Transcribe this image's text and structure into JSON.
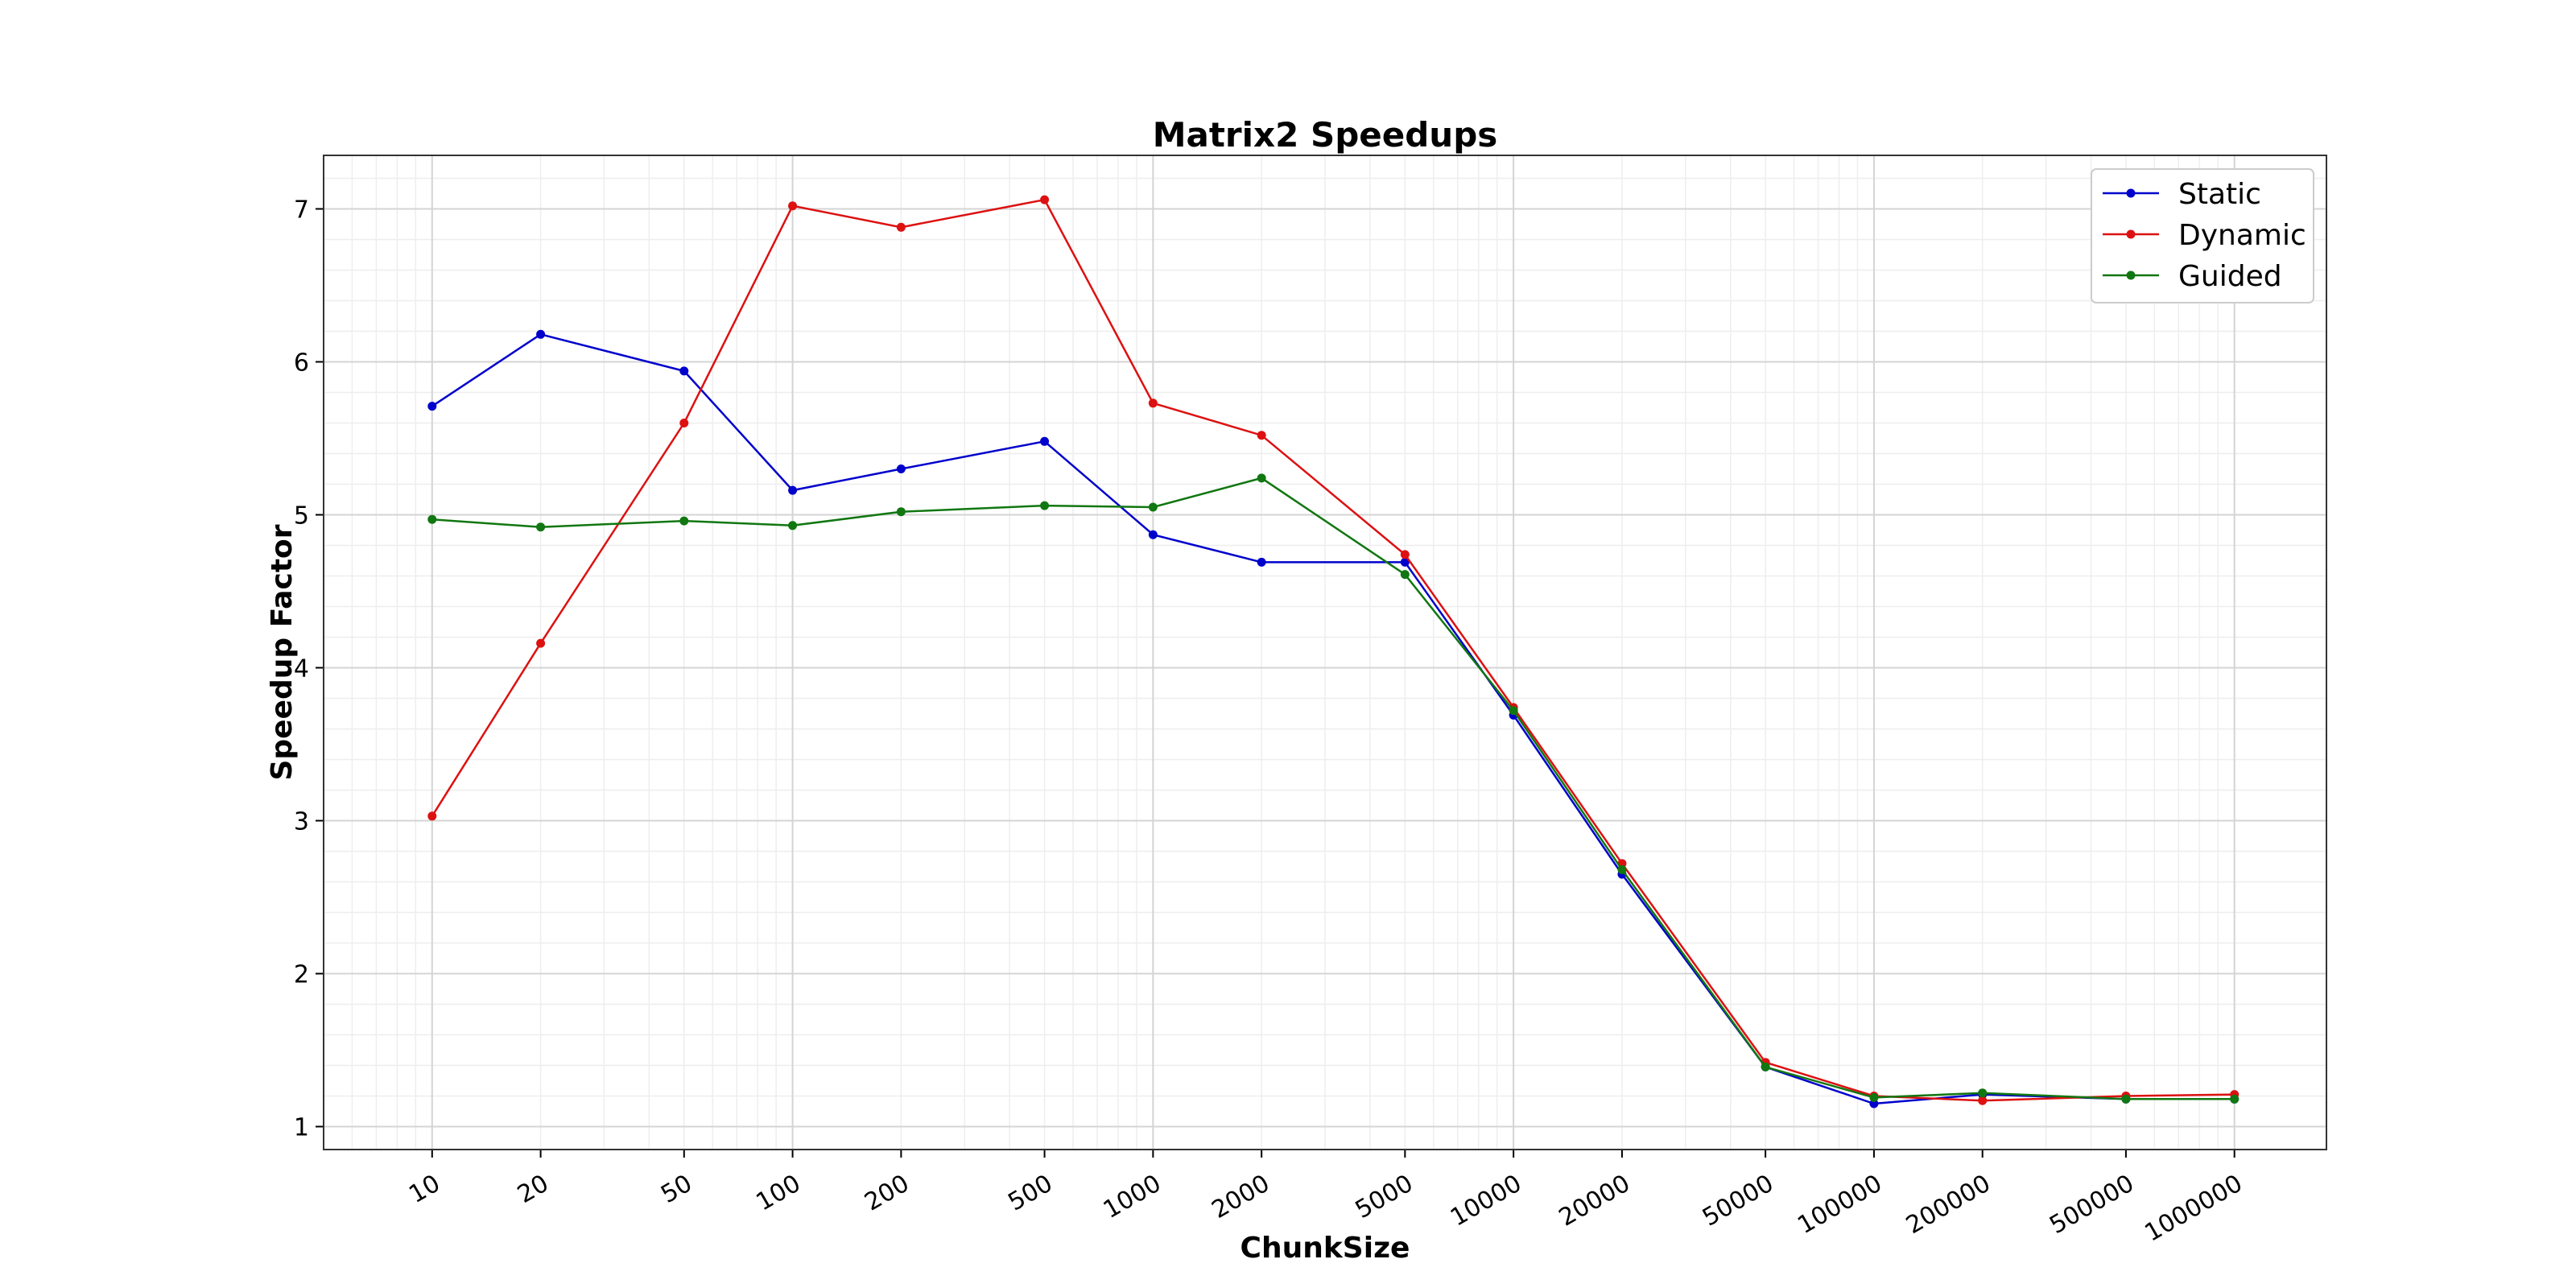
{
  "chart_data": {
    "type": "line",
    "title": "Matrix2 Speedups",
    "xlabel": "ChunkSize",
    "ylabel": "Speedup Factor",
    "x_scale": "log",
    "xlim": [
      5,
      1800000
    ],
    "ylim": [
      0.85,
      7.35
    ],
    "grid": true,
    "legend_position": "top-right",
    "x": [
      10,
      20,
      50,
      100,
      200,
      500,
      1000,
      2000,
      5000,
      10000,
      20000,
      50000,
      100000,
      200000,
      500000,
      1000000
    ],
    "x_tick_labels": [
      "10",
      "20",
      "50",
      "100",
      "200",
      "500",
      "1000",
      "2000",
      "5000",
      "10000",
      "20000",
      "50000",
      "100000",
      "200000",
      "500000",
      "1000000"
    ],
    "y_ticks": [
      1,
      2,
      3,
      4,
      5,
      6,
      7
    ],
    "y_tick_labels": [
      "1",
      "2",
      "3",
      "4",
      "5",
      "6",
      "7"
    ],
    "series": [
      {
        "name": "Static",
        "color": "#0000cc",
        "values": [
          5.71,
          6.18,
          5.94,
          5.16,
          5.3,
          5.48,
          4.87,
          4.69,
          4.69,
          3.69,
          2.65,
          1.39,
          1.15,
          1.21,
          1.18,
          1.18
        ]
      },
      {
        "name": "Dynamic",
        "color": "#dd1111",
        "values": [
          3.03,
          4.16,
          5.6,
          7.02,
          6.88,
          7.06,
          5.73,
          5.52,
          4.74,
          3.74,
          2.72,
          1.42,
          1.2,
          1.17,
          1.2,
          1.21
        ]
      },
      {
        "name": "Guided",
        "color": "#117711",
        "values": [
          4.97,
          4.92,
          4.96,
          4.93,
          5.02,
          5.06,
          5.05,
          5.24,
          4.61,
          3.72,
          2.68,
          1.39,
          1.19,
          1.22,
          1.18,
          1.18
        ]
      }
    ]
  }
}
